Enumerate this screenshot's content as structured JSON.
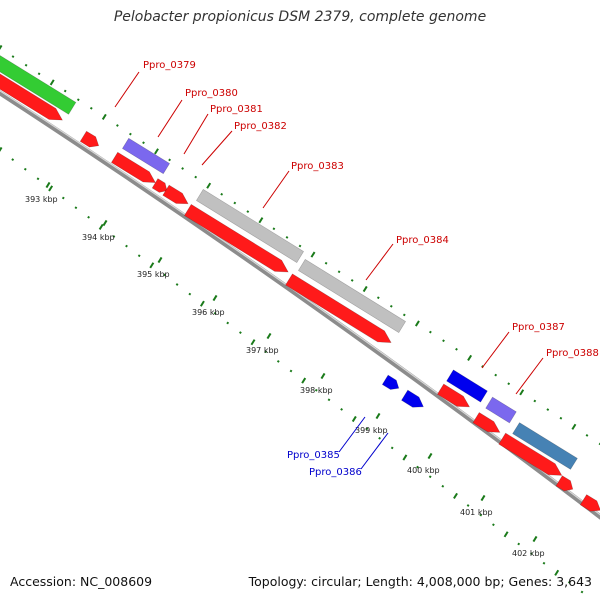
{
  "title": "Pelobacter propionicus DSM 2379, complete genome",
  "footer": {
    "accession": "Accession: NC_008609",
    "summary": "Topology: circular; Length: 4,008,000 bp; Genes: 3,643"
  },
  "colors": {
    "background": "#ffffff",
    "backbone": "#8c8c8c",
    "cds_forward": "#ff1a1a",
    "cds_reverse": "#0000ee",
    "feature_purple": "#7b68ee",
    "feature_green": "#33cc33",
    "feature_grey": "#c0c0c0",
    "feature_steelblue": "#4682b4",
    "tick": "#1a7a1a",
    "label_red": "#cc0000",
    "label_blue": "#0000cc"
  },
  "gene_labels": [
    {
      "id": "Ppro_0379",
      "color": "red"
    },
    {
      "id": "Ppro_0380",
      "color": "red"
    },
    {
      "id": "Ppro_0381",
      "color": "red"
    },
    {
      "id": "Ppro_0382",
      "color": "red"
    },
    {
      "id": "Ppro_0383",
      "color": "red"
    },
    {
      "id": "Ppro_0384",
      "color": "red"
    },
    {
      "id": "Ppro_0385",
      "color": "blue"
    },
    {
      "id": "Ppro_0386",
      "color": "blue"
    },
    {
      "id": "Ppro_0387",
      "color": "red"
    },
    {
      "id": "Ppro_0388",
      "color": "red"
    }
  ],
  "kbp_labels": [
    "393 kbp",
    "394 kbp",
    "395 kbp",
    "396 kbp",
    "397 kbp",
    "398 kbp",
    "399 kbp",
    "400 kbp",
    "401 kbp",
    "402 kbp"
  ]
}
